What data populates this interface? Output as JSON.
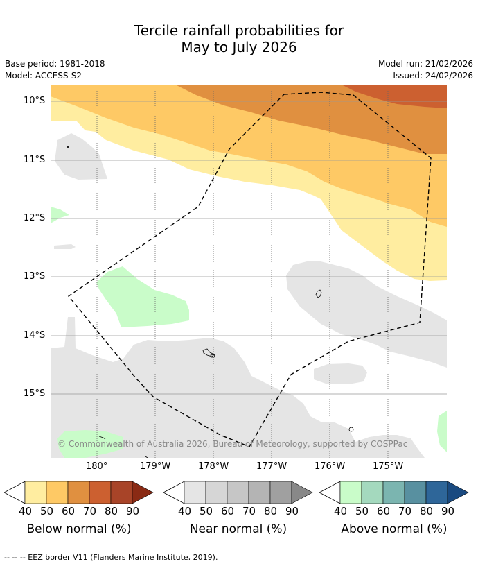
{
  "title_line1": "Tercile rainfall probabilities for",
  "title_line2": "May to July 2026",
  "base_period": "Base period: 1981-2018",
  "model": "Model: ACCESS-S2",
  "model_run": "Model run: 21/02/2026",
  "issued": "Issued: 24/02/2026",
  "lat_labels": [
    "10°S",
    "11°S",
    "12°S",
    "13°S",
    "14°S",
    "15°S"
  ],
  "lon_labels": [
    "180°",
    "179°W",
    "178°W",
    "177°W",
    "176°W",
    "175°W"
  ],
  "copyright": "© Commonwealth of Australia 2026, Bureau of Meteorology, supported by COSPPac",
  "legends": [
    {
      "caption": "Below normal (%)",
      "levels": [
        "40",
        "50",
        "60",
        "70",
        "80",
        "90"
      ],
      "colors": [
        "#ffeda0",
        "#fec965",
        "#e09040",
        "#cc6030",
        "#a84428",
        "#8a2a14"
      ]
    },
    {
      "caption": "Near normal (%)",
      "levels": [
        "40",
        "50",
        "60",
        "70",
        "80",
        "90"
      ],
      "colors": [
        "#e5e5e5",
        "#d6d6d6",
        "#c6c6c6",
        "#b4b4b4",
        "#a0a0a0",
        "#888888"
      ]
    },
    {
      "caption": "Above normal (%)",
      "levels": [
        "40",
        "50",
        "60",
        "70",
        "80",
        "90"
      ],
      "colors": [
        "#c9fcc9",
        "#a4d9be",
        "#7bb5b0",
        "#5890a0",
        "#2e6699",
        "#1a4a80"
      ]
    }
  ],
  "footer": "--  --  -- EEZ border V11 (Flanders Marine Institute, 2019)."
}
